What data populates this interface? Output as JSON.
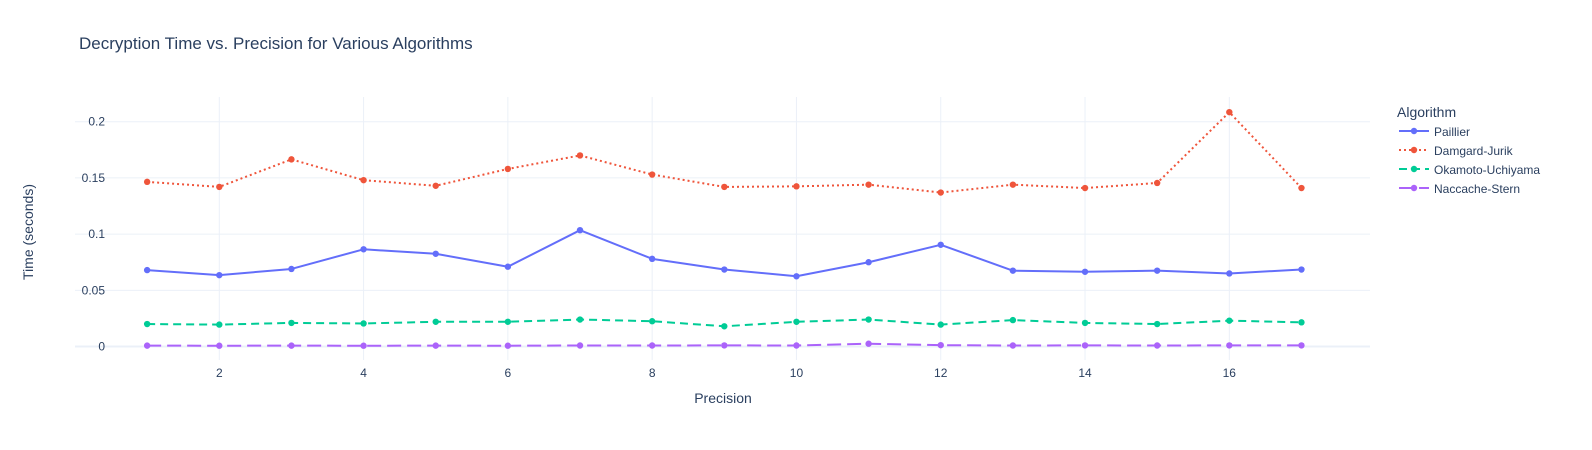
{
  "chart_data": {
    "type": "line",
    "title": "Decryption Time vs. Precision for Various Algorithms",
    "xlabel": "Precision",
    "ylabel": "Time (seconds)",
    "legend_title": "Algorithm",
    "legend_position": "right",
    "grid": true,
    "xlim": [
      0,
      17.95
    ],
    "ylim": [
      -0.012,
      0.222
    ],
    "xticks": [
      2,
      4,
      6,
      8,
      10,
      12,
      14,
      16
    ],
    "yticks": [
      0,
      0.05,
      0.1,
      0.15,
      0.2
    ],
    "ytick_labels": [
      "0",
      "0.05",
      "0.1",
      "0.15",
      "0.2"
    ],
    "x": [
      1,
      2,
      3,
      4,
      5,
      6,
      7,
      8,
      9,
      10,
      11,
      12,
      13,
      14,
      15,
      16,
      17
    ],
    "series": [
      {
        "name": "Paillier",
        "color": "#636efa",
        "dash": "solid",
        "values": [
          0.068,
          0.0635,
          0.069,
          0.0865,
          0.0825,
          0.071,
          0.1035,
          0.078,
          0.0685,
          0.0625,
          0.075,
          0.0905,
          0.0675,
          0.0665,
          0.0675,
          0.065,
          0.0685
        ]
      },
      {
        "name": "Damgard-Jurik",
        "color": "#ef553b",
        "dash": "dot",
        "values": [
          0.1465,
          0.142,
          0.1665,
          0.148,
          0.143,
          0.158,
          0.17,
          0.153,
          0.142,
          0.1425,
          0.144,
          0.137,
          0.144,
          0.141,
          0.1455,
          0.2085,
          0.141
        ]
      },
      {
        "name": "Okamoto-Uchiyama",
        "color": "#00cc96",
        "dash": "dash",
        "values": [
          0.02,
          0.0195,
          0.021,
          0.0205,
          0.022,
          0.022,
          0.024,
          0.0225,
          0.018,
          0.022,
          0.024,
          0.0195,
          0.0235,
          0.021,
          0.02,
          0.023,
          0.0215
        ]
      },
      {
        "name": "Naccache-Stern",
        "color": "#ab63fa",
        "dash": "longdash",
        "values": [
          0.0008,
          0.0007,
          0.0008,
          0.0007,
          0.0008,
          0.0007,
          0.0009,
          0.0009,
          0.001,
          0.0009,
          0.0025,
          0.0012,
          0.0009,
          0.001,
          0.0009,
          0.001,
          0.001
        ]
      }
    ]
  }
}
